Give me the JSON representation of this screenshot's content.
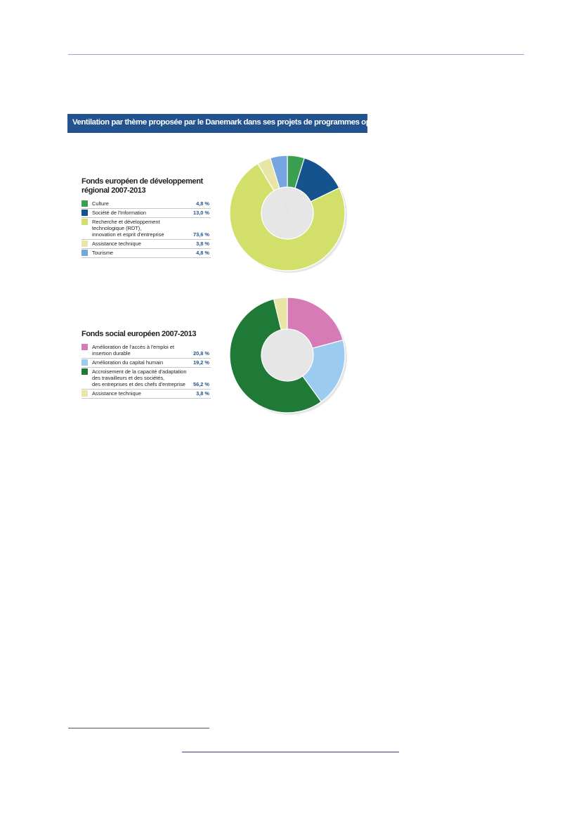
{
  "banner_title": "Ventilation par thème proposée par le Danemark dans ses projets de programmes opérationnels",
  "chart_data": [
    {
      "type": "pie",
      "title": "Fonds européen de développement régional 2007-2013",
      "donut": true,
      "categories": [
        "Culture",
        "Société de l'Information",
        "Recherche et développement technologique (RDT), innovation et esprit d'entreprise",
        "Assistance technique",
        "Tourisme"
      ],
      "label_lines": [
        [
          "Culture"
        ],
        [
          "Société de l'Information"
        ],
        [
          "Recherche et développement technologique (RDT),",
          "innovation et esprit d'entreprise"
        ],
        [
          "Assistance technique"
        ],
        [
          "Tourisme"
        ]
      ],
      "values": [
        4.8,
        13.0,
        73.6,
        3.8,
        4.8
      ],
      "value_labels": [
        "4,8 %",
        "13,0 %",
        "73,6 %",
        "3,8 %",
        "4,8 %"
      ],
      "colors": [
        "#3a9f50",
        "#14538e",
        "#d2df6a",
        "#e9e5a6",
        "#76a5df"
      ]
    },
    {
      "type": "pie",
      "title": "Fonds social européen 2007-2013",
      "donut": true,
      "categories": [
        "Amélioration de l'accès à l'emploi et insertion durable",
        "Amélioration du capital humain",
        "Accroisement de la capacité d'adaptation des travailleurs et des sociétés, des entreprises et des chefs d'entreprise",
        "Assistance technique"
      ],
      "label_lines": [
        [
          "Amélioration de l'accès à l'emploi et insertion durable"
        ],
        [
          "Amélioration du capital humain"
        ],
        [
          "Accroisement de la capacité d'adaptation",
          "des travailleurs et des sociétés,",
          "des entreprises et des chefs d'entreprise"
        ],
        [
          "Assistance technique"
        ]
      ],
      "values": [
        20.8,
        19.2,
        56.2,
        3.8
      ],
      "value_labels": [
        "20,8 %",
        "19,2 %",
        "56,2 %",
        "3,8 %"
      ],
      "colors": [
        "#d77bb7",
        "#9ccbf0",
        "#207a37",
        "#e9e5a6"
      ]
    }
  ]
}
